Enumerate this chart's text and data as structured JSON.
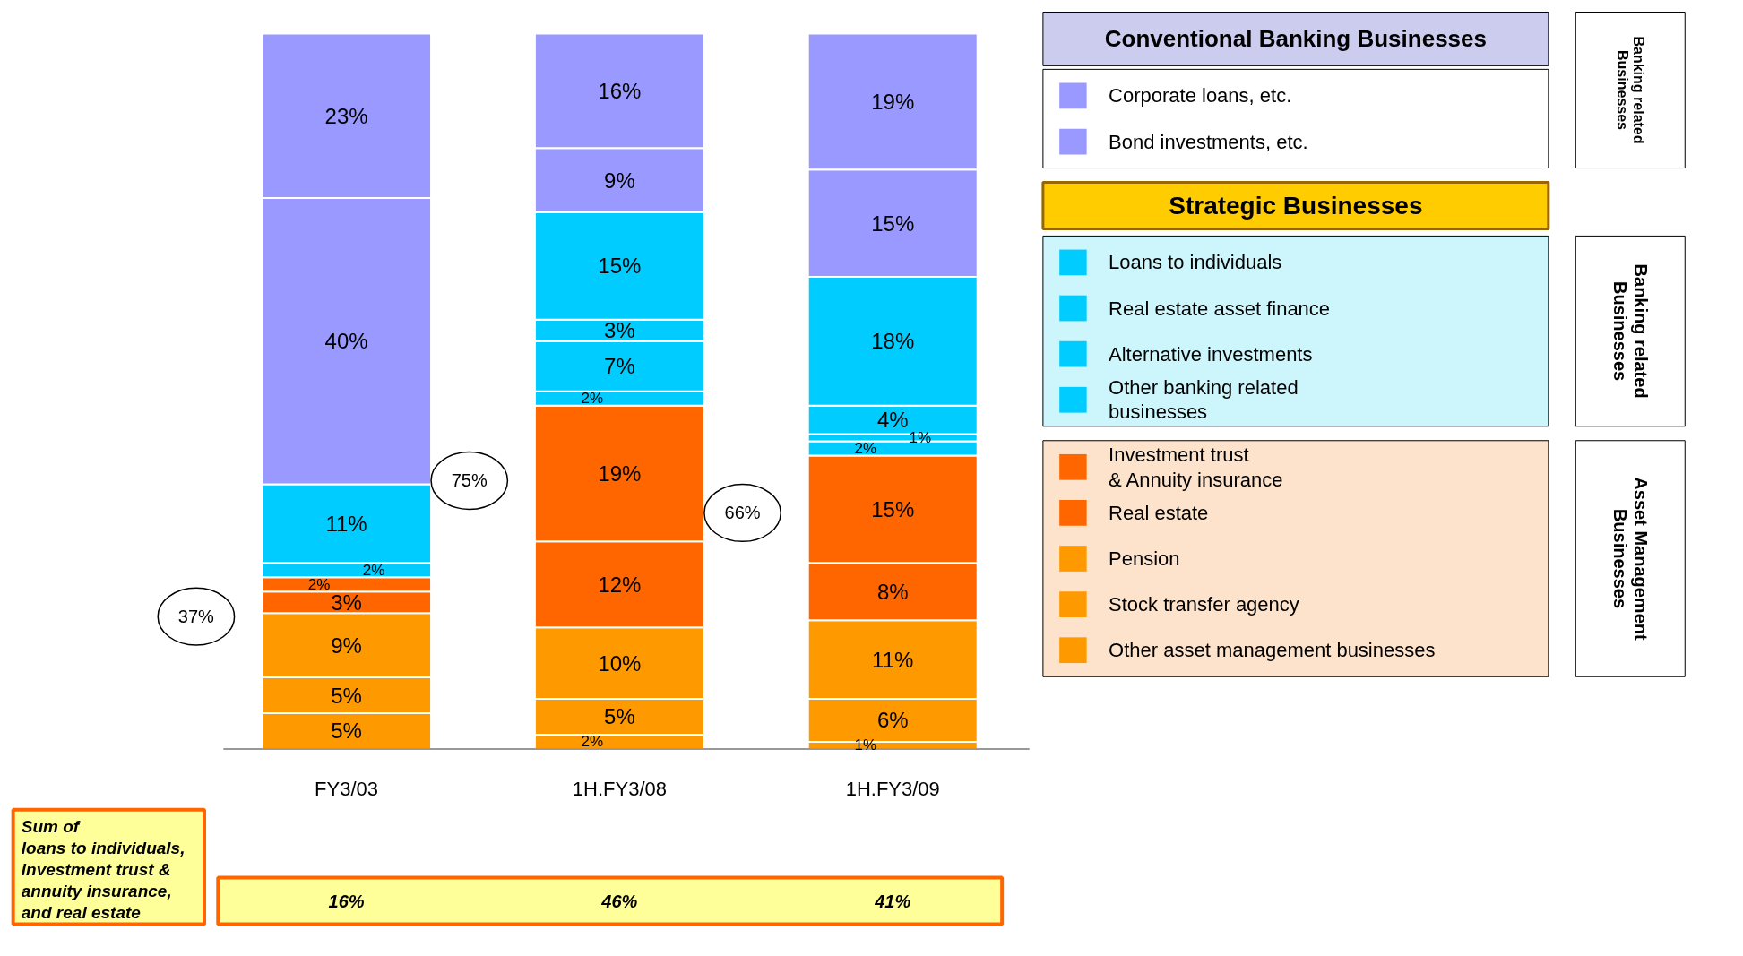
{
  "chart_data": {
    "type": "bar",
    "stacked": true,
    "legend": "right",
    "categories": [
      "FY3/03",
      "1H.FY3/08",
      "1H.FY3/09"
    ],
    "series": [
      {
        "name": "Other asset management businesses",
        "color": "#ff9900",
        "values": [
          5,
          2,
          1
        ],
        "value_labels": [
          "5%",
          "2%",
          "1%"
        ]
      },
      {
        "name": "Stock transfer agency",
        "color": "#ff9900",
        "values": [
          5,
          5,
          6
        ],
        "value_labels": [
          "5%",
          "5%",
          "6%"
        ]
      },
      {
        "name": "Pension",
        "color": "#ff9900",
        "values": [
          9,
          10,
          11
        ],
        "value_labels": [
          "9%",
          "10%",
          "11%"
        ]
      },
      {
        "name": "Real estate",
        "color": "#ff6600",
        "values": [
          3,
          12,
          8
        ],
        "value_labels": [
          "3%",
          "12%",
          "8%"
        ]
      },
      {
        "name": "Investment trust\n& Annuity insurance",
        "color": "#ff6600",
        "values": [
          2,
          19,
          15
        ],
        "value_labels": [
          "2%",
          "19%",
          "15%"
        ]
      },
      {
        "name": "Other banking related\nbusinesses",
        "color": "#00ccff",
        "values": [
          2,
          2,
          2
        ],
        "value_labels": [
          "2%",
          "2%",
          "2%"
        ]
      },
      {
        "name": "Alternative investments",
        "color": "#00ccff",
        "values": [
          null,
          7,
          1
        ],
        "value_labels": [
          null,
          "7%",
          "1%"
        ]
      },
      {
        "name": "Real estate asset finance",
        "color": "#00ccff",
        "values": [
          null,
          3,
          4
        ],
        "value_labels": [
          null,
          "3%",
          "4%"
        ]
      },
      {
        "name": "Loans to individuals",
        "color": "#00ccff",
        "values": [
          11,
          15,
          18
        ],
        "value_labels": [
          "11%",
          "15%",
          "18%"
        ]
      },
      {
        "name": "Bond investments,  etc.",
        "color": "#9999ff",
        "values": [
          40,
          9,
          15
        ],
        "value_labels": [
          "40%",
          "9%",
          "15%"
        ]
      },
      {
        "name": "Corporate loans, etc.",
        "color": "#9999ff",
        "values": [
          23,
          16,
          19
        ],
        "value_labels": [
          "23%",
          "16%",
          "19%"
        ]
      }
    ],
    "annotations": [
      "Conventional Banking Businesses",
      "Strategic Businesses",
      "Banking related\nBusinesses",
      "Banking related\nBusinesses",
      "Asset Management\nBusinesses",
      "37%",
      "75%",
      "66%",
      "Sum of\nloans to individuals,\ninvestment trust &\nannuity insurance,\nand real estate",
      "16%",
      "46%",
      "41%"
    ]
  }
}
